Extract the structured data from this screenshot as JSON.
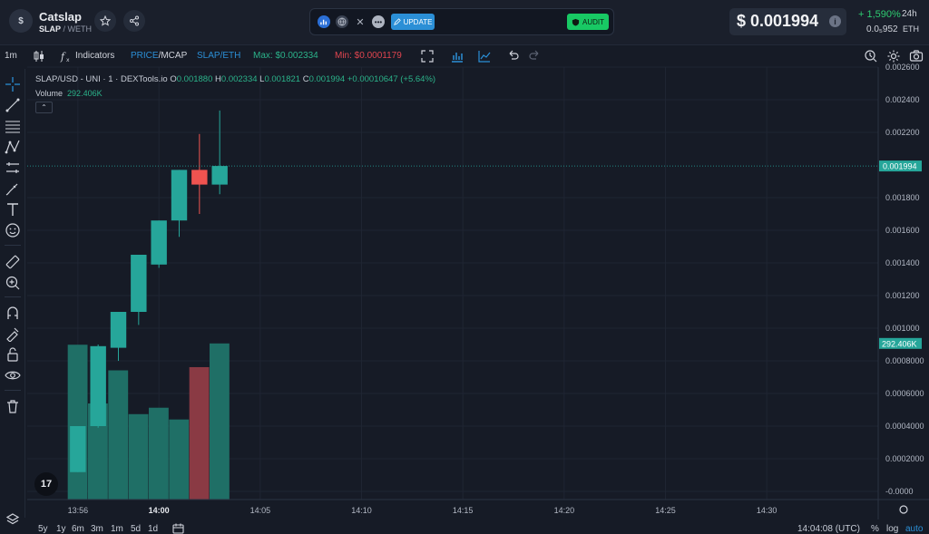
{
  "header": {
    "logo_text": "$",
    "token_name": "Catslap",
    "token_symbol": "SLAP",
    "token_quote": "/ WETH",
    "update_label": "UPDATE",
    "audit_label": "AUDIT",
    "price": "$ 0.001994",
    "change_pct": "+ 1,590%",
    "change_period": "24h",
    "eth_value": "0.0₅952",
    "eth_unit": "ETH"
  },
  "toolbar": {
    "interval": "1m",
    "indicators_label": "Indicators",
    "price_label": "PRICE",
    "mcap_label": "/MCAP",
    "pair_label": "SLAP/ETH",
    "max_label": "Max: $0.002334",
    "min_label": "Min: $0.0001179"
  },
  "legend": {
    "title": "SLAP/USD - UNI · 1 · DEXTools.io",
    "o_key": "O",
    "o": "0.001880",
    "h_key": "H",
    "h": "0.002334",
    "l_key": "L",
    "l": "0.001821",
    "c_key": "C",
    "c": "0.001994",
    "change": "+0.00010647 (+5.64%)",
    "volume_label": "Volume",
    "volume_value": "292.406K"
  },
  "chart_data": {
    "type": "candlestick",
    "title": "SLAP/USD - UNI · 1 · DEXTools.io",
    "ylim": [
      -5e-05,
      0.0026
    ],
    "xlim": [
      "13:53:30",
      "14:35:30"
    ],
    "y_ticks": [
      "-0.0000",
      "0.0002000",
      "0.0004000",
      "0.0006000",
      "0.0008000",
      "0.001000",
      "0.001200",
      "0.001400",
      "0.001600",
      "0.001800",
      "0.002200",
      "0.002400",
      "0.002600"
    ],
    "x_ticks": [
      "13:56",
      "14:00",
      "14:05",
      "14:10",
      "14:15",
      "14:20",
      "14:25",
      "14:30"
    ],
    "candles": [
      {
        "time": "13:56",
        "open": 0.000118,
        "high": 0.0004,
        "low": 0.000118,
        "close": 0.0004
      },
      {
        "time": "13:57",
        "open": 0.0004,
        "high": 0.0009,
        "low": 0.00039,
        "close": 0.00089
      },
      {
        "time": "13:58",
        "open": 0.00088,
        "high": 0.0011,
        "low": 0.0008,
        "close": 0.0011
      },
      {
        "time": "13:59",
        "open": 0.0011,
        "high": 0.00145,
        "low": 0.00102,
        "close": 0.00145
      },
      {
        "time": "14:00",
        "open": 0.00139,
        "high": 0.00166,
        "low": 0.00137,
        "close": 0.00166
      },
      {
        "time": "14:01",
        "open": 0.00166,
        "high": 0.00197,
        "low": 0.00156,
        "close": 0.00197
      },
      {
        "time": "14:02",
        "open": 0.00197,
        "high": 0.00219,
        "low": 0.0017,
        "close": 0.00188
      },
      {
        "time": "14:03",
        "open": 0.00188,
        "high": 0.002334,
        "low": 0.001821,
        "close": 0.001994
      }
    ],
    "volume": {
      "label": "Volume",
      "last": "292.406K",
      "values": [
        290,
        180,
        242,
        160,
        172,
        150,
        248,
        292.406
      ],
      "ymax": 810
    },
    "current_price_label": "0.001994",
    "volume_label": "292.406K"
  },
  "bottom_bar": {
    "ranges": [
      "5y",
      "1y",
      "6m",
      "3m",
      "1m",
      "5d",
      "1d"
    ],
    "utc_time": "14:04:08 (UTC)",
    "pct_label": "%",
    "log_label": "log",
    "auto_label": "auto"
  },
  "tv_logo_text": "17",
  "colors": {
    "up": "#26a69a",
    "down": "#ef5350",
    "volume_up": "#1f6f66",
    "volume_down": "#8a3a44",
    "accent": "#2b8fd6",
    "audit": "#18c964"
  }
}
